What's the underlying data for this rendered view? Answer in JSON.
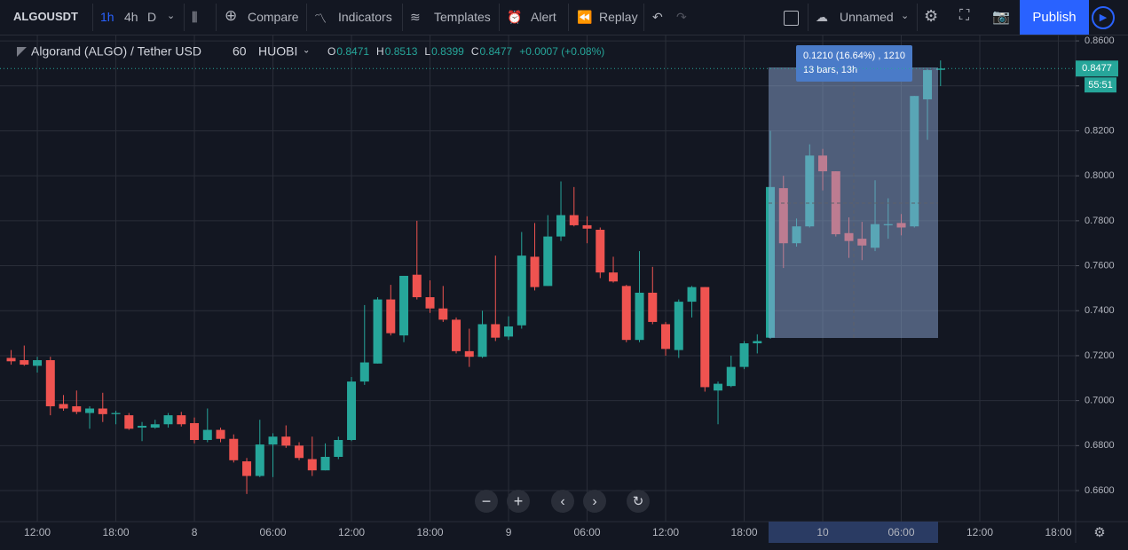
{
  "toolbar": {
    "symbol": "ALGOUSDT",
    "intervals": [
      "1h",
      "4h",
      "D"
    ],
    "compare": "Compare",
    "indicators": "Indicators",
    "templates": "Templates",
    "alert": "Alert",
    "replay": "Replay",
    "layout_name": "Unnamed",
    "publish": "Publish"
  },
  "chart_data": {
    "type": "candlestick",
    "legend": {
      "symbol": "Algorand (ALGO) / Tether USD",
      "interval": "60",
      "exchange": "HUOBI",
      "fields": [
        {
          "label": "O",
          "value": "0.8471"
        },
        {
          "label": "H",
          "value": "0.8513"
        },
        {
          "label": "L",
          "value": "0.8399"
        },
        {
          "label": "C",
          "value": "0.8477"
        }
      ],
      "change": "+0.0007 (+0.08%)"
    },
    "up_color": "#26a69a",
    "down_color": "#ef5350",
    "open": [
      0.719,
      0.718,
      0.7155,
      0.718,
      0.6985,
      0.6975,
      0.6945,
      0.6965,
      0.694,
      0.6935,
      0.688,
      0.688,
      0.6895,
      0.6935,
      0.69,
      0.6825,
      0.687,
      0.683,
      0.673,
      0.6665,
      0.6805,
      0.684,
      0.68,
      0.674,
      0.669,
      0.675,
      0.6825,
      0.7085,
      0.7165,
      0.745,
      0.729,
      0.756,
      0.746,
      0.741,
      0.736,
      0.722,
      0.7195,
      0.734,
      0.7285,
      0.7335,
      0.764,
      0.751,
      0.773,
      0.7825,
      0.778,
      0.776,
      0.757,
      0.751,
      0.727,
      0.748,
      0.734,
      0.7225,
      0.744,
      0.7505,
      0.7045,
      0.7065,
      0.715,
      0.7255,
      0.728,
      0.7945,
      0.77,
      0.7775,
      0.809,
      0.802,
      0.7745,
      0.772,
      0.768,
      0.778,
      0.779,
      0.7775,
      0.834,
      0.8471
    ],
    "high": [
      0.7225,
      0.7245,
      0.7195,
      0.7195,
      0.7025,
      0.7045,
      0.6975,
      0.7035,
      0.6955,
      0.6945,
      0.6905,
      0.6915,
      0.6945,
      0.695,
      0.6925,
      0.6965,
      0.688,
      0.685,
      0.6745,
      0.6915,
      0.6855,
      0.689,
      0.6815,
      0.684,
      0.681,
      0.684,
      0.7105,
      0.7425,
      0.746,
      0.7515,
      0.7555,
      0.78,
      0.7535,
      0.751,
      0.737,
      0.732,
      0.74,
      0.7645,
      0.7375,
      0.775,
      0.779,
      0.7825,
      0.7975,
      0.795,
      0.782,
      0.777,
      0.764,
      0.7515,
      0.7665,
      0.7595,
      0.735,
      0.745,
      0.751,
      0.7505,
      0.7085,
      0.72,
      0.7265,
      0.7295,
      0.82,
      0.8,
      0.781,
      0.814,
      0.812,
      0.802,
      0.7815,
      0.7795,
      0.798,
      0.79,
      0.783,
      0.8355,
      0.8475,
      0.8513
    ],
    "low": [
      0.716,
      0.7155,
      0.7125,
      0.6935,
      0.6955,
      0.694,
      0.6875,
      0.6905,
      0.6895,
      0.687,
      0.682,
      0.6875,
      0.688,
      0.6885,
      0.681,
      0.6815,
      0.6815,
      0.6725,
      0.6585,
      0.666,
      0.666,
      0.679,
      0.6735,
      0.6665,
      0.669,
      0.674,
      0.682,
      0.707,
      0.7165,
      0.729,
      0.726,
      0.745,
      0.739,
      0.735,
      0.721,
      0.715,
      0.719,
      0.7265,
      0.727,
      0.732,
      0.749,
      0.751,
      0.771,
      0.7775,
      0.77,
      0.7545,
      0.7525,
      0.726,
      0.726,
      0.734,
      0.72,
      0.719,
      0.737,
      0.704,
      0.6895,
      0.706,
      0.714,
      0.721,
      0.7275,
      0.759,
      0.7685,
      0.777,
      0.7935,
      0.773,
      0.7635,
      0.7625,
      0.7665,
      0.772,
      0.7735,
      0.777,
      0.816,
      0.8399
    ],
    "close": [
      0.7175,
      0.716,
      0.718,
      0.6975,
      0.6965,
      0.695,
      0.6965,
      0.694,
      0.6945,
      0.6875,
      0.6888,
      0.6895,
      0.6935,
      0.6895,
      0.6825,
      0.687,
      0.683,
      0.6735,
      0.6665,
      0.6805,
      0.684,
      0.68,
      0.6745,
      0.669,
      0.675,
      0.6825,
      0.7085,
      0.717,
      0.745,
      0.73,
      0.7555,
      0.746,
      0.741,
      0.736,
      0.722,
      0.7195,
      0.734,
      0.728,
      0.733,
      0.7645,
      0.7505,
      0.773,
      0.7825,
      0.778,
      0.7765,
      0.757,
      0.753,
      0.727,
      0.748,
      0.735,
      0.723,
      0.744,
      0.7505,
      0.706,
      0.7075,
      0.715,
      0.7255,
      0.7265,
      0.795,
      0.77,
      0.7775,
      0.809,
      0.802,
      0.774,
      0.771,
      0.769,
      0.7785,
      0.7785,
      0.777,
      0.8355,
      0.847,
      0.8477
    ],
    "ylim": [
      0.6462,
      0.8624
    ],
    "yticks": [
      {
        "value": 0.66,
        "label": "0.6600"
      },
      {
        "value": 0.68,
        "label": "0.6800"
      },
      {
        "value": 0.7,
        "label": "0.7000"
      },
      {
        "value": 0.72,
        "label": "0.7200"
      },
      {
        "value": 0.74,
        "label": "0.7400"
      },
      {
        "value": 0.76,
        "label": "0.7600"
      },
      {
        "value": 0.78,
        "label": "0.7800"
      },
      {
        "value": 0.8,
        "label": "0.8000"
      },
      {
        "value": 0.82,
        "label": "0.8200"
      },
      {
        "value": 0.84,
        "label": "0.8400"
      },
      {
        "value": 0.86,
        "label": "0.8600"
      }
    ],
    "xlim": [
      -0.85,
      81.32
    ],
    "xticks": [
      {
        "value": 2,
        "label": "12:00"
      },
      {
        "value": 8,
        "label": "18:00"
      },
      {
        "value": 14,
        "label": "8"
      },
      {
        "value": 20,
        "label": "06:00"
      },
      {
        "value": 26,
        "label": "12:00"
      },
      {
        "value": 32,
        "label": "18:00"
      },
      {
        "value": 38,
        "label": "9"
      },
      {
        "value": 44,
        "label": "06:00"
      },
      {
        "value": 50,
        "label": "12:00"
      },
      {
        "value": 56,
        "label": "18:00"
      },
      {
        "value": 62,
        "label": "10"
      },
      {
        "value": 68,
        "label": "06:00"
      },
      {
        "value": 74,
        "label": "12:00"
      },
      {
        "value": 80,
        "label": "18:00"
      }
    ],
    "grid": true,
    "last_price": {
      "value": 0.8477,
      "label": "0.8477"
    },
    "countdown": "55:51",
    "measure": {
      "line1": "0.1210 (16.64%) , 1210",
      "line2": "13 bars, 13h"
    }
  }
}
